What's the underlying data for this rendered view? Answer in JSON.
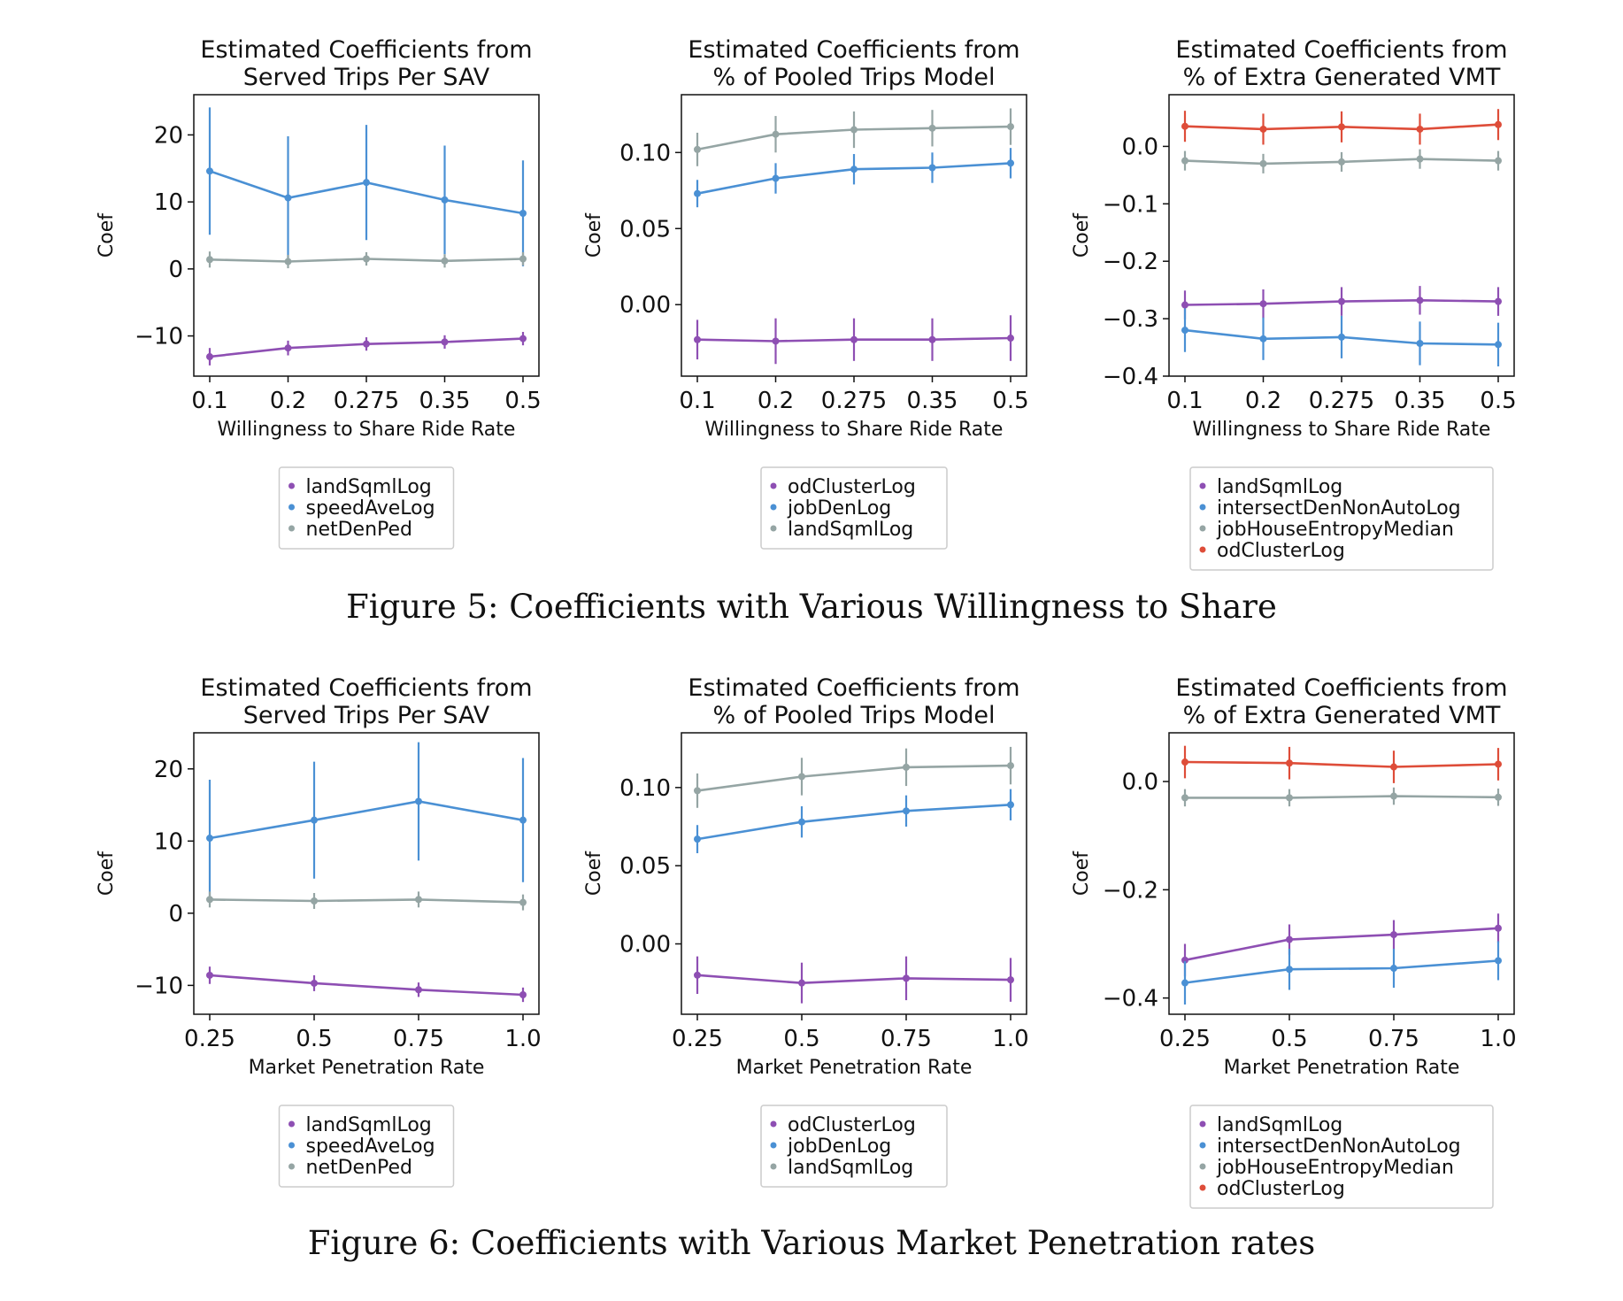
{
  "colors": {
    "purple": "#8e4fb3",
    "blue": "#4a90d4",
    "gray": "#95a5a4",
    "red": "#de4d39"
  },
  "figures": [
    {
      "caption": "Figure 5: Coefficients with Various Willingness to Share"
    },
    {
      "caption": "Figure 6: Coefficients with Various Market Penetration rates"
    }
  ],
  "chart_data": [
    {
      "type": "line",
      "title": "Estimated Coefficients from\nServed Trips Per SAV",
      "xlabel": "Willingness to Share Ride Rate",
      "ylabel": "Coef",
      "x": [
        "0.1",
        "0.2",
        "0.275",
        "0.35",
        "0.5"
      ],
      "ylim": [
        -16,
        26
      ],
      "yticks": [
        -10,
        0,
        10,
        20
      ],
      "yticklabels": [
        "−10",
        "0",
        "10",
        "20"
      ],
      "series": [
        {
          "name": "landSqmlLog",
          "color": "purple",
          "values": [
            -13.1,
            -11.8,
            -11.2,
            -10.9,
            -10.4
          ],
          "err": [
            1.3,
            1.1,
            1.0,
            1.0,
            1.0
          ]
        },
        {
          "name": "speedAveLog",
          "color": "blue",
          "values": [
            14.6,
            10.6,
            12.9,
            10.3,
            8.3
          ],
          "err": [
            9.5,
            9.2,
            8.6,
            8.1,
            7.9
          ]
        },
        {
          "name": "netDenPed",
          "color": "gray",
          "values": [
            1.4,
            1.1,
            1.5,
            1.2,
            1.5
          ],
          "err": [
            1.2,
            1.0,
            1.0,
            1.0,
            1.0
          ]
        }
      ]
    },
    {
      "type": "line",
      "title": "Estimated Coefficients from\n% of Pooled Trips Model",
      "xlabel": "Willingness to Share Ride Rate",
      "ylabel": "Coef",
      "x": [
        "0.1",
        "0.2",
        "0.275",
        "0.35",
        "0.5"
      ],
      "ylim": [
        -0.047,
        0.138
      ],
      "yticks": [
        0,
        0.05,
        0.1
      ],
      "yticklabels": [
        "0.00",
        "0.05",
        "0.10"
      ],
      "series": [
        {
          "name": "odClusterLog",
          "color": "purple",
          "values": [
            -0.023,
            -0.024,
            -0.023,
            -0.023,
            -0.022
          ],
          "err": [
            0.013,
            0.015,
            0.014,
            0.014,
            0.015
          ]
        },
        {
          "name": "jobDenLog",
          "color": "blue",
          "values": [
            0.073,
            0.083,
            0.089,
            0.09,
            0.093
          ],
          "err": [
            0.009,
            0.01,
            0.01,
            0.01,
            0.01
          ]
        },
        {
          "name": "landSqmlLog",
          "color": "gray",
          "values": [
            0.102,
            0.112,
            0.115,
            0.116,
            0.117
          ],
          "err": [
            0.011,
            0.012,
            0.012,
            0.012,
            0.012
          ]
        }
      ]
    },
    {
      "type": "line",
      "title": "Estimated Coefficients from\n% of Extra Generated VMT",
      "xlabel": "Willingness to Share Ride Rate",
      "ylabel": "Coef",
      "x": [
        "0.1",
        "0.2",
        "0.275",
        "0.35",
        "0.5"
      ],
      "ylim": [
        -0.4,
        0.09
      ],
      "yticks": [
        -0.4,
        -0.3,
        -0.2,
        -0.1,
        0
      ],
      "yticklabels": [
        "−0.4",
        "−0.3",
        "−0.2",
        "−0.1",
        "0.0"
      ],
      "series": [
        {
          "name": "landSqmlLog",
          "color": "purple",
          "values": [
            -0.276,
            -0.274,
            -0.27,
            -0.268,
            -0.27
          ],
          "err": [
            0.025,
            0.025,
            0.025,
            0.025,
            0.025
          ]
        },
        {
          "name": "intersectDenNonAutoLog",
          "color": "blue",
          "values": [
            -0.32,
            -0.335,
            -0.332,
            -0.343,
            -0.345
          ],
          "err": [
            0.038,
            0.037,
            0.037,
            0.038,
            0.038
          ]
        },
        {
          "name": "jobHouseEntropyMedian",
          "color": "gray",
          "values": [
            -0.025,
            -0.03,
            -0.027,
            -0.022,
            -0.025
          ],
          "err": [
            0.017,
            0.017,
            0.017,
            0.017,
            0.017
          ]
        },
        {
          "name": "odClusterLog",
          "color": "red",
          "values": [
            0.035,
            0.03,
            0.034,
            0.03,
            0.038
          ],
          "err": [
            0.027,
            0.027,
            0.027,
            0.027,
            0.027
          ]
        }
      ]
    },
    {
      "type": "line",
      "title": "Estimated Coefficients from\nServed Trips Per SAV",
      "xlabel": "Market Penetration Rate",
      "ylabel": "Coef",
      "x": [
        "0.25",
        "0.5",
        "0.75",
        "1.0"
      ],
      "ylim": [
        -14,
        25
      ],
      "yticks": [
        -10,
        0,
        10,
        20
      ],
      "yticklabels": [
        "−10",
        "0",
        "10",
        "20"
      ],
      "series": [
        {
          "name": "landSqmlLog",
          "color": "purple",
          "values": [
            -8.6,
            -9.7,
            -10.6,
            -11.3
          ],
          "err": [
            1.2,
            1.1,
            1.0,
            1.0
          ]
        },
        {
          "name": "speedAveLog",
          "color": "blue",
          "values": [
            10.4,
            12.9,
            15.5,
            12.9
          ],
          "err": [
            8.1,
            8.1,
            8.2,
            8.6
          ]
        },
        {
          "name": "netDenPed",
          "color": "gray",
          "values": [
            1.9,
            1.7,
            1.9,
            1.5
          ],
          "err": [
            1.1,
            1.1,
            1.1,
            1.1
          ]
        }
      ]
    },
    {
      "type": "line",
      "title": "Estimated Coefficients from\n% of Pooled Trips Model",
      "xlabel": "Market Penetration Rate",
      "ylabel": "Coef",
      "x": [
        "0.25",
        "0.5",
        "0.75",
        "1.0"
      ],
      "ylim": [
        -0.045,
        0.135
      ],
      "yticks": [
        0,
        0.05,
        0.1
      ],
      "yticklabels": [
        "0.00",
        "0.05",
        "0.10"
      ],
      "series": [
        {
          "name": "odClusterLog",
          "color": "purple",
          "values": [
            -0.02,
            -0.025,
            -0.022,
            -0.023
          ],
          "err": [
            0.012,
            0.013,
            0.014,
            0.014
          ]
        },
        {
          "name": "jobDenLog",
          "color": "blue",
          "values": [
            0.067,
            0.078,
            0.085,
            0.089
          ],
          "err": [
            0.009,
            0.01,
            0.01,
            0.01
          ]
        },
        {
          "name": "landSqmlLog",
          "color": "gray",
          "values": [
            0.098,
            0.107,
            0.113,
            0.114
          ],
          "err": [
            0.011,
            0.012,
            0.012,
            0.012
          ]
        }
      ]
    },
    {
      "type": "line",
      "title": "Estimated Coefficients from\n% of Extra Generated VMT",
      "xlabel": "Market Penetration Rate",
      "ylabel": "Coef",
      "x": [
        "0.25",
        "0.5",
        "0.75",
        "1.0"
      ],
      "ylim": [
        -0.43,
        0.09
      ],
      "yticks": [
        -0.4,
        -0.2,
        0
      ],
      "yticklabels": [
        "−0.4",
        "−0.2",
        "0.0"
      ],
      "series": [
        {
          "name": "landSqmlLog",
          "color": "purple",
          "values": [
            -0.33,
            -0.292,
            -0.283,
            -0.271
          ],
          "err": [
            0.03,
            0.028,
            0.027,
            0.027
          ]
        },
        {
          "name": "intersectDenNonAutoLog",
          "color": "blue",
          "values": [
            -0.372,
            -0.347,
            -0.345,
            -0.331
          ],
          "err": [
            0.04,
            0.038,
            0.036,
            0.036
          ]
        },
        {
          "name": "jobHouseEntropyMedian",
          "color": "gray",
          "values": [
            -0.03,
            -0.03,
            -0.027,
            -0.029
          ],
          "err": [
            0.016,
            0.016,
            0.016,
            0.016
          ]
        },
        {
          "name": "odClusterLog",
          "color": "red",
          "values": [
            0.036,
            0.034,
            0.027,
            0.032
          ],
          "err": [
            0.03,
            0.03,
            0.03,
            0.03
          ]
        }
      ]
    }
  ]
}
